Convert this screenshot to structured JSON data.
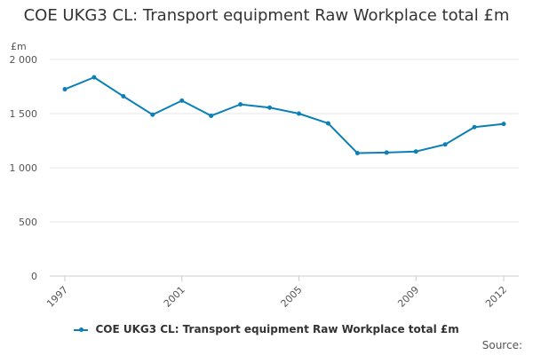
{
  "chart_data": {
    "type": "line",
    "title": "COE UKG3 CL: Transport equipment Raw Workplace total £m",
    "ylabel": "£m",
    "xlabel": "",
    "ylim": [
      0,
      2000
    ],
    "y_ticks": [
      "0",
      "500",
      "1 000",
      "1 500",
      "2 000"
    ],
    "x_tick_labels": [
      "1997",
      "2001",
      "2005",
      "2009",
      "2012"
    ],
    "x": [
      1997,
      1998,
      1999,
      2000,
      2001,
      2002,
      2003,
      2004,
      2005,
      2006,
      2007,
      2008,
      2009,
      2010,
      2011,
      2012
    ],
    "series": [
      {
        "name": "COE UKG3 CL: Transport equipment Raw Workplace total £m",
        "color": "#0c80b6",
        "values": [
          1725,
          1835,
          1660,
          1490,
          1620,
          1480,
          1585,
          1555,
          1500,
          1410,
          1135,
          1140,
          1150,
          1215,
          1375,
          1405
        ]
      }
    ],
    "grid": true,
    "legend_position": "bottom"
  },
  "footer": {
    "source_label": "Source:"
  }
}
